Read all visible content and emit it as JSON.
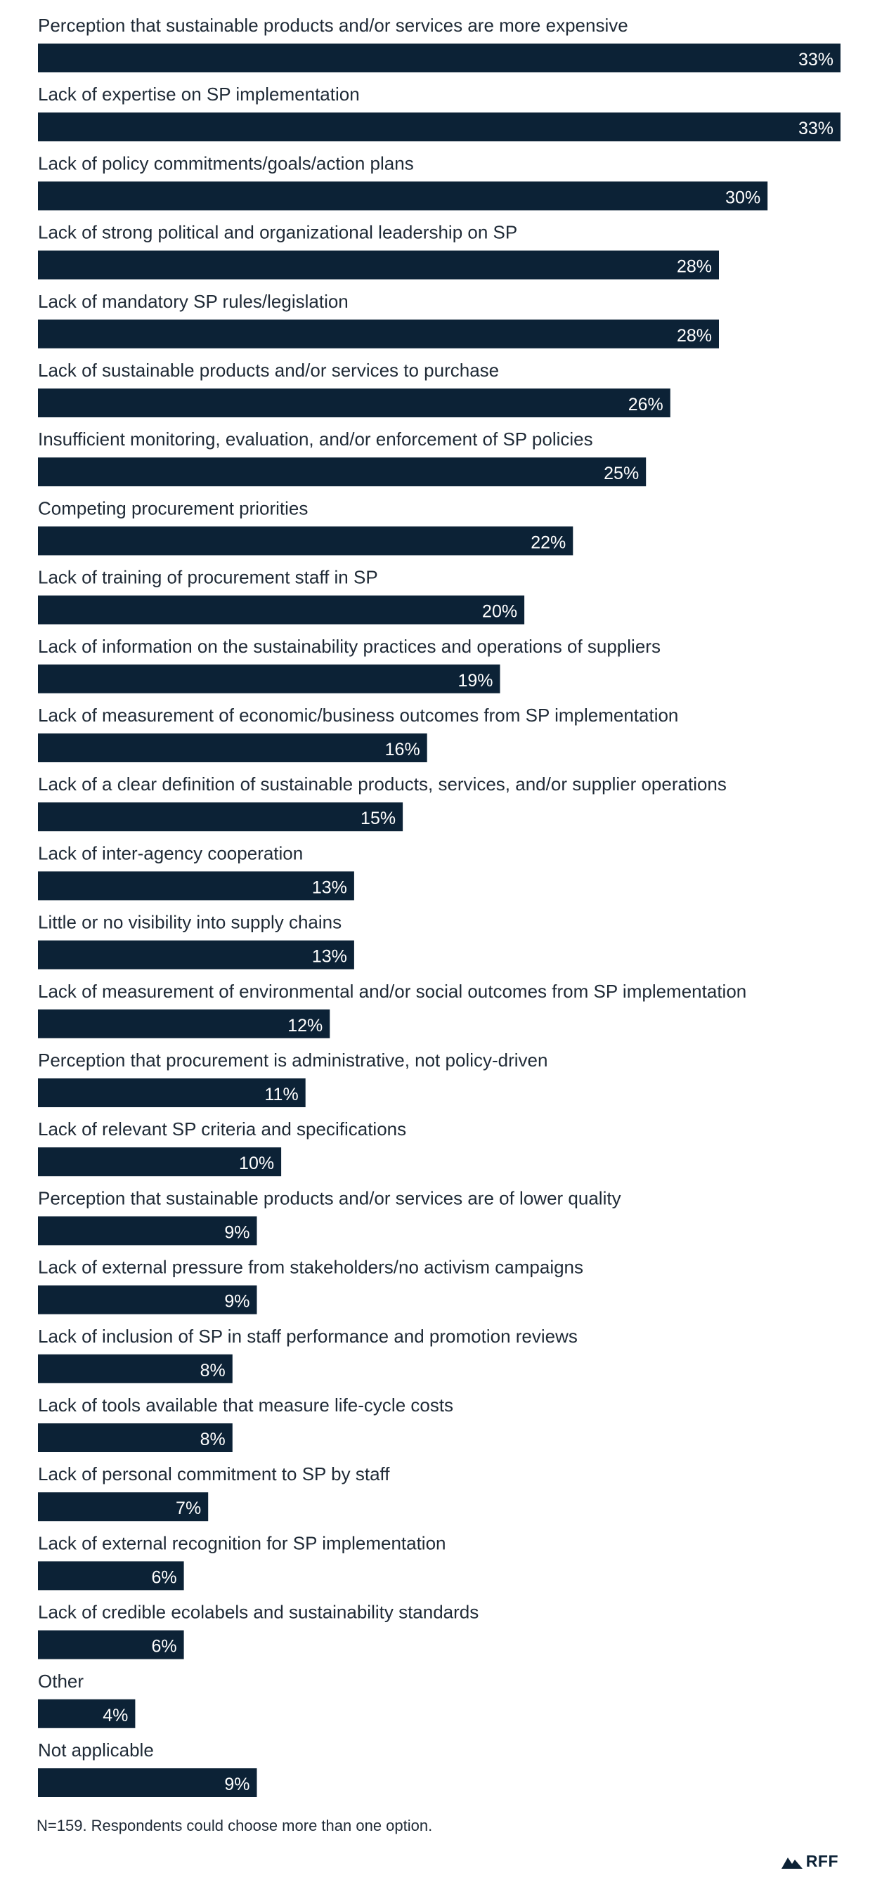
{
  "chart_data": {
    "type": "bar",
    "orientation": "horizontal",
    "categories": [
      "Perception that sustainable products and/or services are more expensive",
      "Lack of expertise on SP implementation",
      "Lack of policy commitments/goals/action plans",
      "Lack of strong political and organizational leadership on SP",
      "Lack of mandatory SP rules/legislation",
      "Lack of sustainable products and/or services to purchase",
      "Insufficient monitoring, evaluation, and/or enforcement of SP policies",
      "Competing procurement priorities",
      "Lack of training of procurement staff in SP",
      "Lack of information on the sustainability practices and operations of suppliers",
      "Lack of measurement of economic/business outcomes from SP implementation",
      "Lack of a clear definition of sustainable products, services, and/or supplier operations",
      "Lack of inter-agency cooperation",
      "Little or no visibility into supply chains",
      "Lack of measurement of environmental and/or social outcomes from SP implementation",
      "Perception that procurement is administrative, not policy-driven",
      "Lack of relevant SP criteria and specifications",
      "Perception that sustainable products and/or services are of lower quality",
      "Lack of external pressure from stakeholders/no activism campaigns",
      "Lack of inclusion of SP in staff performance and promotion reviews",
      "Lack of tools available that measure life-cycle costs",
      "Lack of personal commitment to SP by staff",
      "Lack of external recognition for SP implementation",
      "Lack of credible ecolabels and sustainability standards",
      "Other",
      "Not applicable"
    ],
    "values": [
      33,
      33,
      30,
      28,
      28,
      26,
      25,
      22,
      20,
      19,
      16,
      15,
      13,
      13,
      12,
      11,
      10,
      9,
      9,
      8,
      8,
      7,
      6,
      6,
      4,
      9
    ],
    "value_labels": [
      "33%",
      "33%",
      "30%",
      "28%",
      "28%",
      "26%",
      "25%",
      "22%",
      "20%",
      "19%",
      "16%",
      "15%",
      "13%",
      "13%",
      "12%",
      "11%",
      "10%",
      "9%",
      "9%",
      "8%",
      "8%",
      "7%",
      "6%",
      "6%",
      "4%",
      "9%"
    ],
    "title": "",
    "xlabel": "",
    "ylabel": "",
    "xlim": [
      0,
      33
    ],
    "grid": false,
    "legend": "none",
    "bar_color": "#0c2236",
    "value_label_color": "#ffffff",
    "value_label_position": "inside-end"
  },
  "footnote": "N=159. Respondents could choose more than one option.",
  "brand": {
    "name": "RFF",
    "icon": "mountain-logo-icon"
  }
}
